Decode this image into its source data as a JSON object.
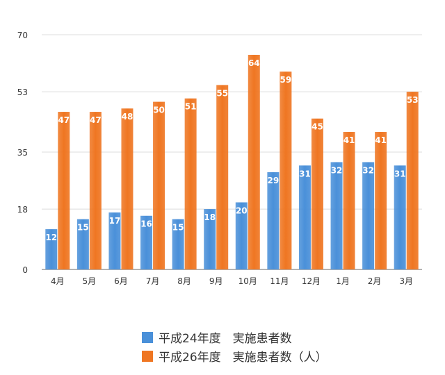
{
  "chart_data": {
    "type": "bar",
    "categories": [
      "4月",
      "5月",
      "6月",
      "7月",
      "8月",
      "9月",
      "10月",
      "11月",
      "12月",
      "1月",
      "2月",
      "3月"
    ],
    "series": [
      {
        "name": "平成24年度　実施患者数",
        "color": "#4a90d9",
        "values": [
          12,
          15,
          17,
          16,
          15,
          18,
          20,
          29,
          31,
          32,
          32,
          31
        ]
      },
      {
        "name": "平成26年度　実施患者数（人）",
        "color": "#ef7622",
        "values": [
          47,
          47,
          48,
          50,
          51,
          55,
          64,
          59,
          45,
          41,
          41,
          53
        ]
      }
    ],
    "yticks": [
      0,
      18,
      35,
      53,
      70
    ],
    "ylim": [
      0,
      70
    ],
    "grid": true,
    "legend": "bottom-center"
  }
}
